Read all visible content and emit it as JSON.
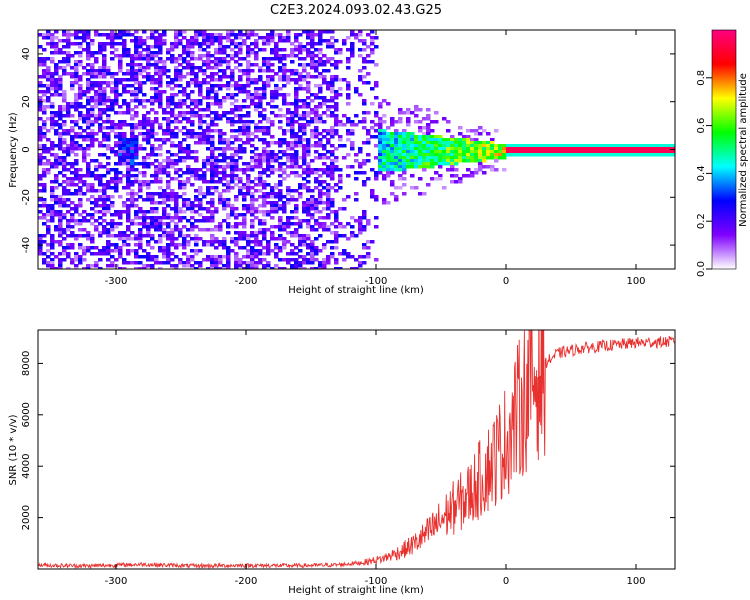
{
  "title": "C2E3.2024.093.02.43.G25",
  "chart_data": [
    {
      "type": "heatmap",
      "xlabel": "Height of straight line (km)",
      "ylabel": "Frequency (Hz)",
      "xlim": [
        -360,
        130
      ],
      "ylim": [
        -50,
        50
      ],
      "xticks": [
        -300,
        -200,
        -100,
        0,
        100
      ],
      "yticks": [
        -40,
        -20,
        0,
        20,
        40
      ],
      "colorbar": {
        "label": "Normalized spectral amplitude",
        "range": [
          0,
          1
        ],
        "ticks": [
          0.0,
          0.2,
          0.4,
          0.6,
          0.8
        ],
        "colormap": [
          "#ffffff",
          "#7f00ff",
          "#0000ff",
          "#00ffff",
          "#00ff00",
          "#ffff00",
          "#ff0000",
          "#ff0080"
        ]
      },
      "description_regions": [
        {
          "x_range": [
            -360,
            -100
          ],
          "freq_spread": [
            -50,
            50
          ],
          "amplitude": "low (0.05-0.3)"
        },
        {
          "x_range": [
            -130,
            0
          ],
          "freq_spread": [
            -8,
            8
          ],
          "amplitude": "medium (0.3-0.7)"
        },
        {
          "x_range": [
            0,
            130
          ],
          "freq_spread": [
            -1,
            1
          ],
          "amplitude": "high (0.9-1.0)"
        }
      ]
    },
    {
      "type": "line",
      "xlabel": "Height of straight line (km)",
      "ylabel": "SNR (10 * v/v)",
      "xlim": [
        -360,
        130
      ],
      "ylim": [
        0,
        9300
      ],
      "xticks": [
        -300,
        -200,
        -100,
        0,
        100
      ],
      "yticks": [
        2000,
        4000,
        6000,
        8000
      ],
      "series": [
        {
          "color": "#e8312f",
          "points": [
            [
              -360,
              150
            ],
            [
              -320,
              120
            ],
            [
              -280,
              180
            ],
            [
              -240,
              120
            ],
            [
              -200,
              140
            ],
            [
              -160,
              130
            ],
            [
              -130,
              160
            ],
            [
              -110,
              250
            ],
            [
              -95,
              400
            ],
            [
              -80,
              700
            ],
            [
              -70,
              1000
            ],
            [
              -60,
              1400
            ],
            [
              -50,
              1900
            ],
            [
              -40,
              2400
            ],
            [
              -30,
              2800
            ],
            [
              -20,
              3500
            ],
            [
              -10,
              4200
            ],
            [
              0,
              5000
            ],
            [
              10,
              6200
            ],
            [
              20,
              7300
            ],
            [
              30,
              8000
            ],
            [
              40,
              8400
            ],
            [
              50,
              8500
            ],
            [
              60,
              8600
            ],
            [
              80,
              8700
            ],
            [
              100,
              8800
            ],
            [
              130,
              8850
            ]
          ]
        }
      ]
    }
  ]
}
